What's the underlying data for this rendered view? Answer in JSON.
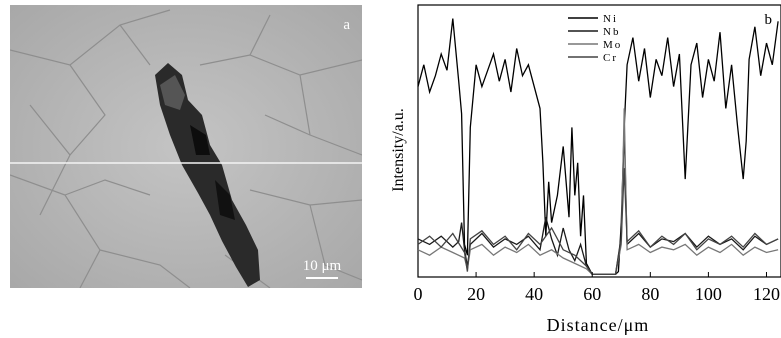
{
  "panel_a": {
    "label": "a",
    "scale_bar_text": "10 μm"
  },
  "chart_data": {
    "type": "line",
    "panel_label": "b",
    "xlabel": "Distance/μm",
    "ylabel": "Intensity/a.u.",
    "xlim": [
      0,
      125
    ],
    "ylim": [
      0,
      1
    ],
    "x_ticks": [
      0,
      20,
      40,
      60,
      80,
      100,
      120
    ],
    "x_tick_labels": [
      "0",
      "20",
      "40",
      "60",
      "80",
      "100",
      "120"
    ],
    "legend_position": "top",
    "series": [
      {
        "name": "Ni",
        "color": "#000000",
        "x": [
          0,
          2,
          4,
          6,
          8,
          10,
          12,
          14,
          15,
          16,
          17,
          18,
          20,
          22,
          24,
          26,
          28,
          30,
          32,
          34,
          36,
          38,
          40,
          42,
          43,
          44,
          45,
          46,
          48,
          50,
          52,
          53,
          54,
          55,
          56,
          57,
          58,
          60,
          62,
          64,
          66,
          68,
          69,
          70,
          71,
          72,
          74,
          76,
          78,
          80,
          82,
          84,
          86,
          88,
          90,
          92,
          94,
          96,
          98,
          100,
          102,
          104,
          106,
          108,
          110,
          112,
          113,
          114,
          116,
          118,
          120,
          122,
          124
        ],
        "values": [
          0.7,
          0.78,
          0.68,
          0.74,
          0.82,
          0.76,
          0.95,
          0.72,
          0.6,
          0.12,
          0.08,
          0.55,
          0.78,
          0.7,
          0.76,
          0.82,
          0.72,
          0.8,
          0.68,
          0.84,
          0.74,
          0.78,
          0.7,
          0.62,
          0.42,
          0.15,
          0.35,
          0.2,
          0.3,
          0.48,
          0.22,
          0.55,
          0.3,
          0.42,
          0.15,
          0.3,
          0.05,
          0.01,
          0.01,
          0.01,
          0.01,
          0.01,
          0.02,
          0.2,
          0.55,
          0.78,
          0.88,
          0.72,
          0.84,
          0.66,
          0.8,
          0.74,
          0.88,
          0.7,
          0.82,
          0.36,
          0.78,
          0.86,
          0.66,
          0.8,
          0.72,
          0.9,
          0.62,
          0.78,
          0.56,
          0.36,
          0.5,
          0.8,
          0.92,
          0.74,
          0.86,
          0.78,
          0.94
        ]
      },
      {
        "name": "Nb",
        "color": "#1a1a1a",
        "x": [
          0,
          4,
          8,
          12,
          14,
          15,
          16,
          17,
          18,
          22,
          26,
          30,
          34,
          38,
          42,
          44,
          46,
          48,
          50,
          52,
          54,
          56,
          58,
          60,
          64,
          68,
          70,
          71,
          72,
          76,
          80,
          84,
          88,
          92,
          96,
          100,
          104,
          108,
          112,
          116,
          120,
          124
        ],
        "values": [
          0.14,
          0.12,
          0.15,
          0.11,
          0.13,
          0.2,
          0.1,
          0.04,
          0.12,
          0.16,
          0.11,
          0.14,
          0.12,
          0.15,
          0.1,
          0.22,
          0.14,
          0.08,
          0.18,
          0.1,
          0.06,
          0.12,
          0.04,
          0.01,
          0.01,
          0.01,
          0.15,
          0.55,
          0.12,
          0.16,
          0.11,
          0.14,
          0.13,
          0.16,
          0.11,
          0.15,
          0.12,
          0.14,
          0.1,
          0.15,
          0.12,
          0.14
        ]
      },
      {
        "name": "Mo",
        "color": "#777777",
        "x": [
          0,
          4,
          8,
          12,
          16,
          17,
          18,
          22,
          26,
          30,
          34,
          38,
          42,
          46,
          50,
          54,
          58,
          60,
          64,
          68,
          70,
          71,
          72,
          76,
          80,
          84,
          88,
          92,
          96,
          100,
          104,
          108,
          112,
          116,
          120,
          124
        ],
        "values": [
          0.1,
          0.08,
          0.11,
          0.09,
          0.07,
          0.03,
          0.1,
          0.12,
          0.08,
          0.11,
          0.09,
          0.12,
          0.08,
          0.1,
          0.07,
          0.05,
          0.03,
          0.01,
          0.01,
          0.01,
          0.12,
          0.62,
          0.1,
          0.12,
          0.09,
          0.11,
          0.1,
          0.12,
          0.08,
          0.11,
          0.09,
          0.12,
          0.08,
          0.11,
          0.09,
          0.1
        ]
      },
      {
        "name": "Cr",
        "color": "#444444",
        "x": [
          0,
          4,
          8,
          12,
          16,
          17,
          18,
          22,
          26,
          30,
          34,
          38,
          42,
          46,
          50,
          54,
          58,
          60,
          64,
          68,
          70,
          71,
          72,
          76,
          80,
          84,
          88,
          92,
          96,
          100,
          104,
          108,
          112,
          116,
          120,
          124
        ],
        "values": [
          0.12,
          0.15,
          0.11,
          0.16,
          0.09,
          0.02,
          0.14,
          0.17,
          0.12,
          0.15,
          0.1,
          0.16,
          0.12,
          0.18,
          0.1,
          0.08,
          0.04,
          0.01,
          0.01,
          0.01,
          0.14,
          0.4,
          0.13,
          0.17,
          0.11,
          0.15,
          0.12,
          0.16,
          0.1,
          0.14,
          0.12,
          0.15,
          0.11,
          0.16,
          0.12,
          0.14
        ]
      }
    ]
  }
}
